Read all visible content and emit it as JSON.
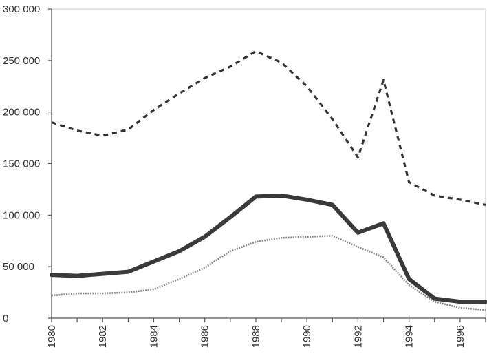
{
  "chart_data": {
    "type": "line",
    "title": "",
    "xlabel": "",
    "ylabel": "",
    "x": [
      1980,
      1981,
      1982,
      1983,
      1984,
      1985,
      1986,
      1987,
      1988,
      1989,
      1990,
      1991,
      1992,
      1993,
      1994,
      1995,
      1996,
      1997
    ],
    "xticks": [
      "1980",
      "1982",
      "1984",
      "1986",
      "1988",
      "1990",
      "1992",
      "1994",
      "1996"
    ],
    "yticks": [
      "0",
      "50 000",
      "100 000",
      "150 000",
      "200 000",
      "250 000",
      "300 000"
    ],
    "ylim": [
      0,
      300000
    ],
    "xlim": [
      1980,
      1997
    ],
    "grid": "none",
    "legend": "none",
    "series": [
      {
        "style": "dashed",
        "color": "#333333",
        "values": [
          190000,
          182000,
          177000,
          183000,
          202000,
          218000,
          233000,
          244000,
          259000,
          248000,
          225000,
          193000,
          156000,
          231000,
          132000,
          119000,
          115000,
          110000
        ]
      },
      {
        "style": "thick-solid",
        "color": "#3a3a3a",
        "values": [
          42000,
          41000,
          43000,
          45000,
          55000,
          65000,
          79000,
          98000,
          118000,
          119000,
          115000,
          110000,
          83000,
          92000,
          38000,
          19000,
          16000,
          16000
        ]
      },
      {
        "style": "thin-dotted",
        "color": "#8c8c8c",
        "values": [
          22000,
          24000,
          24000,
          25000,
          28000,
          38000,
          49000,
          65000,
          74000,
          78000,
          79000,
          80000,
          69000,
          59000,
          32000,
          16000,
          10000,
          8000
        ]
      }
    ]
  }
}
